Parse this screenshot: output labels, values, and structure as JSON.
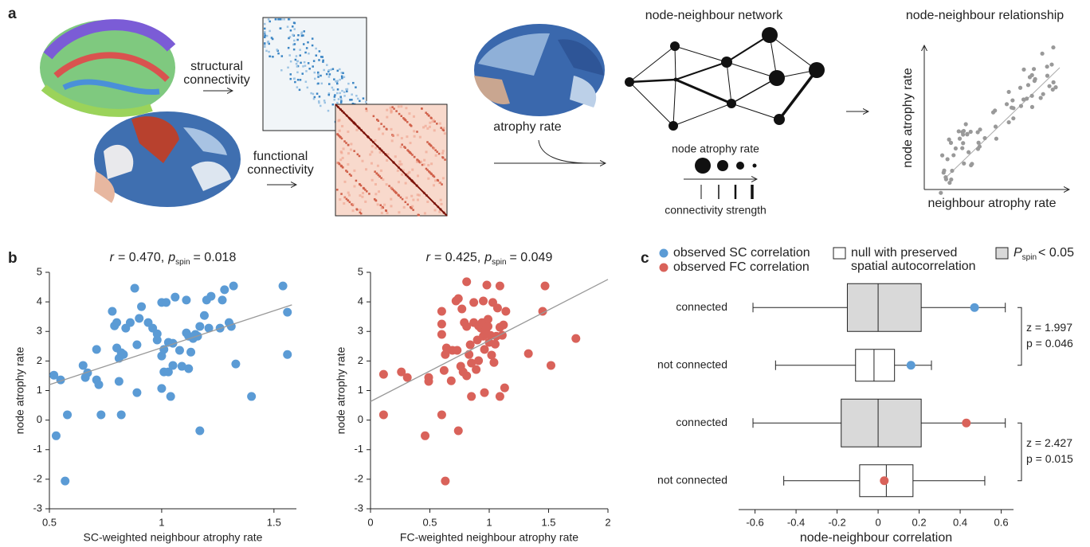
{
  "panel_a": {
    "label": "a",
    "structural": [
      "structural",
      "connectivity"
    ],
    "functional": [
      "functional",
      "connectivity"
    ],
    "atrophy_rate": "atrophy rate",
    "network_title": "node-neighbour network",
    "node_size_label": "node atrophy rate",
    "strength_label": "connectivity strength",
    "relationship_title": "node-neighbour relationship",
    "relationship_y": "node atrophy rate",
    "relationship_x": "neighbour atrophy rate"
  },
  "panel_b_label": "b",
  "panel_c_label": "c",
  "chart_data": [
    {
      "type": "scatter",
      "title_parts": [
        "r",
        "= 0.470,",
        "p",
        "spin",
        "= 0.018"
      ],
      "x_label": "SC-weighted neighbour atrophy rate",
      "y_label": "node atrophy rate",
      "color": "#5b9bd5",
      "x": [
        0.52,
        0.53,
        0.55,
        0.57,
        0.58,
        0.65,
        0.67,
        0.66,
        0.71,
        0.71,
        0.72,
        0.73,
        0.78,
        0.79,
        0.8,
        0.8,
        0.81,
        0.81,
        0.82,
        0.82,
        0.83,
        0.84,
        0.86,
        0.88,
        0.89,
        0.89,
        0.9,
        0.91,
        0.94,
        0.96,
        0.98,
        0.98,
        1.0,
        1.0,
        1.0,
        1.01,
        1.01,
        1.02,
        1.03,
        1.03,
        1.04,
        1.05,
        1.05,
        1.06,
        1.08,
        1.09,
        1.11,
        1.11,
        1.12,
        1.12,
        1.13,
        1.14,
        1.15,
        1.16,
        1.17,
        1.17,
        1.19,
        1.2,
        1.21,
        1.22,
        1.26,
        1.27,
        1.28,
        1.3,
        1.32,
        1.31,
        1.33,
        1.4,
        1.54,
        1.56,
        1.56
      ],
      "y": [
        1.52,
        -0.53,
        1.36,
        -2.06,
        0.18,
        1.85,
        1.6,
        1.44,
        2.39,
        1.36,
        1.2,
        0.18,
        3.68,
        3.19,
        3.3,
        2.44,
        2.09,
        1.31,
        0.18,
        2.28,
        2.22,
        3.11,
        3.3,
        4.46,
        2.55,
        0.93,
        3.44,
        3.84,
        3.3,
        3.11,
        2.71,
        2.92,
        2.17,
        3.98,
        1.07,
        2.39,
        1.63,
        3.98,
        1.63,
        2.63,
        0.8,
        1.85,
        2.6,
        4.16,
        2.36,
        1.82,
        2.95,
        4.06,
        1.74,
        2.84,
        2.3,
        2.76,
        2.9,
        2.84,
        3.17,
        -0.36,
        3.54,
        4.06,
        3.11,
        4.19,
        3.11,
        4.06,
        4.41,
        3.3,
        4.54,
        3.17,
        1.9,
        0.8,
        4.54,
        3.65,
        2.22
      ],
      "trend": {
        "x": [
          0.5,
          1.58
        ],
        "y": [
          1.2,
          3.9
        ]
      },
      "xlim": [
        0.5,
        1.6
      ],
      "ylim": [
        -3,
        5
      ],
      "xticks": [
        0.5,
        1,
        1.5
      ],
      "yticks": [
        -3,
        -2,
        -1,
        0,
        1,
        2,
        3,
        4,
        5
      ]
    },
    {
      "type": "scatter",
      "title_parts": [
        "r",
        "= 0.425,",
        "p",
        "spin",
        "= 0.049"
      ],
      "x_label": "FC-weighted neighbour atrophy rate",
      "y_label": "node atrophy rate",
      "color": "#d9625a",
      "x": [
        0.11,
        0.11,
        0.26,
        0.31,
        0.46,
        0.49,
        0.49,
        0.6,
        0.6,
        0.6,
        0.6,
        0.62,
        0.63,
        0.63,
        0.64,
        0.68,
        0.69,
        0.72,
        0.73,
        0.74,
        0.74,
        0.76,
        0.77,
        0.78,
        0.79,
        0.81,
        0.81,
        0.81,
        0.83,
        0.84,
        0.85,
        0.85,
        0.87,
        0.87,
        0.89,
        0.9,
        0.91,
        0.91,
        0.93,
        0.94,
        0.95,
        0.95,
        0.96,
        0.96,
        0.97,
        0.98,
        0.99,
        0.99,
        1.0,
        1.01,
        1.02,
        1.03,
        1.04,
        1.05,
        1.06,
        1.07,
        1.09,
        1.09,
        1.09,
        1.11,
        1.12,
        1.13,
        1.14,
        1.33,
        1.45,
        1.47,
        1.52,
        1.73
      ],
      "y": [
        0.18,
        1.55,
        1.63,
        1.44,
        -0.53,
        1.44,
        1.31,
        3.68,
        3.25,
        2.9,
        0.18,
        1.68,
        -2.06,
        2.22,
        2.44,
        1.33,
        2.36,
        4.03,
        2.36,
        4.11,
        -0.36,
        1.82,
        3.76,
        1.63,
        3.3,
        4.68,
        1.5,
        3.17,
        2.22,
        2.55,
        0.8,
        1.93,
        3.3,
        3.98,
        1.71,
        2.71,
        3.19,
        2.01,
        3.11,
        3.3,
        4.03,
        2.84,
        2.39,
        0.93,
        3.03,
        4.57,
        3.41,
        3.17,
        2.63,
        2.87,
        2.2,
        3.98,
        1.95,
        2.57,
        2.84,
        3.79,
        3.14,
        4.54,
        0.8,
        2.87,
        3.22,
        1.09,
        3.68,
        2.25,
        3.68,
        4.54,
        1.85,
        2.76
      ],
      "trend": {
        "x": [
          0,
          2
        ],
        "y": [
          0.63,
          4.76
        ]
      },
      "xlim": [
        0,
        2
      ],
      "ylim": [
        -3,
        5
      ],
      "xticks": [
        0,
        0.5,
        1,
        1.5,
        2
      ],
      "yticks": [
        -3,
        -2,
        -1,
        0,
        1,
        2,
        3,
        4,
        5
      ]
    },
    {
      "type": "box",
      "categories": [
        "connected",
        "not connected",
        "connected",
        "not connected"
      ],
      "boxes": [
        {
          "whisker_low": -0.61,
          "q1": -0.15,
          "median": 0,
          "q3": 0.21,
          "whisker_high": 0.62,
          "significant": true,
          "observed": 0.47,
          "observed_color": "#5b9bd5"
        },
        {
          "whisker_low": -0.5,
          "q1": -0.11,
          "median": -0.02,
          "q3": 0.08,
          "whisker_high": 0.26,
          "significant": false,
          "observed": 0.16,
          "observed_color": "#5b9bd5"
        },
        {
          "whisker_low": -0.61,
          "q1": -0.18,
          "median": 0,
          "q3": 0.21,
          "whisker_high": 0.62,
          "significant": true,
          "observed": 0.43,
          "observed_color": "#d9625a"
        },
        {
          "whisker_low": -0.46,
          "q1": -0.09,
          "median": 0.04,
          "q3": 0.17,
          "whisker_high": 0.52,
          "significant": false,
          "observed": 0.03,
          "observed_color": "#d9625a"
        }
      ],
      "null_fill": "#ffffff",
      "significant_fill": "#d9d9d9",
      "xlim": [
        -0.68,
        0.66
      ],
      "xticks": [
        -0.6,
        -0.4,
        -0.2,
        0,
        0.2,
        0.4,
        0.6
      ],
      "x_label": "node-neighbour correlation",
      "legend": [
        {
          "label": "observed SC correlation",
          "symbol": "dot",
          "color": "#5b9bd5"
        },
        {
          "label": "observed FC correlation",
          "symbol": "dot",
          "color": "#d9625a"
        },
        {
          "lines": [
            "null with preserved",
            "spatial autocorrelation"
          ],
          "symbol": "box",
          "fill": "#ffffff"
        },
        {
          "label": "P",
          "subscript": "spin",
          "suffix": "< 0.05",
          "symbol": "box",
          "fill": "#d9d9d9"
        }
      ],
      "annotations": [
        [
          "z = 1.997",
          "p = 0.046"
        ],
        [
          "z = 2.427",
          "p = 0.015"
        ]
      ]
    }
  ]
}
